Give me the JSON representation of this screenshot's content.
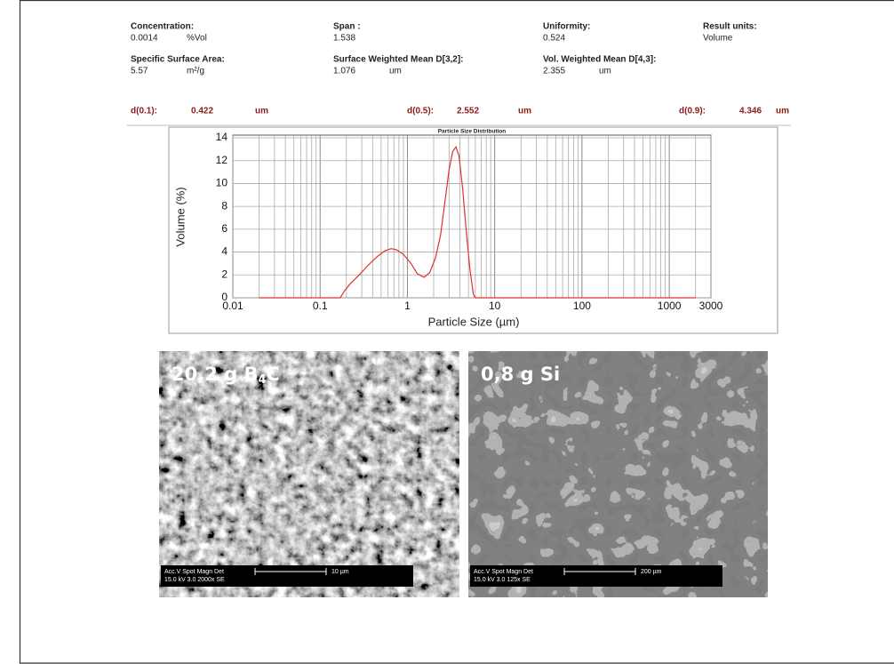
{
  "header": {
    "fields": [
      {
        "label": "Concentration:",
        "value": "0.0014",
        "unit": "%Vol"
      },
      {
        "label": "Span :",
        "value": "1.538"
      },
      {
        "label": "Uniformity:",
        "value": "0.524"
      },
      {
        "label": "Result units:",
        "value": "Volume"
      },
      {
        "label": "Specific Surface Area:",
        "value": "5.57",
        "unit": "m²/g"
      },
      {
        "label": "Surface Weighted Mean D[3,2]:",
        "value": "1.076",
        "unit": "um"
      },
      {
        "label": "Vol. Weighted Mean D[4,3]:",
        "value": "2.355",
        "unit": "um"
      }
    ],
    "percentiles": [
      {
        "label": "d(0.1):",
        "value": "0.422",
        "unit": "um"
      },
      {
        "label": "d(0.5):",
        "value": "2.552",
        "unit": "um"
      },
      {
        "label": "d(0.9):",
        "value": "4.346",
        "unit": "um"
      }
    ]
  },
  "chart_data": {
    "type": "line",
    "title": "Particle Size Distribution",
    "x_label": "Particle Size (µm)",
    "y_label": "Volume (%)",
    "x": [
      0.02,
      0.17,
      0.19,
      0.22,
      0.28,
      0.35,
      0.45,
      0.55,
      0.65,
      0.75,
      0.9,
      1.1,
      1.3,
      1.55,
      1.8,
      2.1,
      2.4,
      2.7,
      3.0,
      3.3,
      3.6,
      3.9,
      4.3,
      4.7,
      5.2,
      5.7,
      6.0,
      2000
    ],
    "values": [
      0,
      0,
      0.6,
      1.2,
      2.0,
      2.8,
      3.6,
      4.1,
      4.3,
      4.2,
      3.8,
      3.0,
      2.1,
      1.8,
      2.2,
      3.5,
      5.5,
      8.5,
      11.2,
      12.8,
      13.2,
      12.4,
      9.5,
      6.0,
      2.5,
      0.3,
      0,
      0
    ],
    "color": "#e03030",
    "x_log": true,
    "xlim": [
      0.01,
      3000
    ],
    "xticks": [
      0.01,
      0.1,
      1,
      10,
      100,
      1000,
      3000
    ],
    "xminorticks": [
      0.02,
      0.03,
      0.04,
      0.05,
      0.06,
      0.07,
      0.08,
      0.09,
      0.2,
      0.3,
      0.4,
      0.5,
      0.6,
      0.7,
      0.8,
      0.9,
      2,
      3,
      4,
      5,
      6,
      7,
      8,
      9,
      20,
      30,
      40,
      50,
      60,
      70,
      80,
      90,
      200,
      300,
      400,
      500,
      600,
      700,
      800,
      900,
      2000
    ],
    "ylim": [
      0,
      14
    ],
    "yticks": [
      0,
      2,
      4,
      6,
      8,
      10,
      12,
      14
    ],
    "grid": true
  },
  "images": [
    {
      "label": [
        "20,2 g B",
        "4",
        "C"
      ],
      "info": [
        "Acc.V   Spot Magn    Det",
        "15.0 kV 3.0   2000x    SE"
      ],
      "scale": "10 µm"
    },
    {
      "label": [
        "0,8 g Si"
      ],
      "info": [
        "Acc.V   Spot Magn    Det",
        "15.0 kV 3.0   125x     SE"
      ],
      "scale": "200 µm"
    }
  ]
}
